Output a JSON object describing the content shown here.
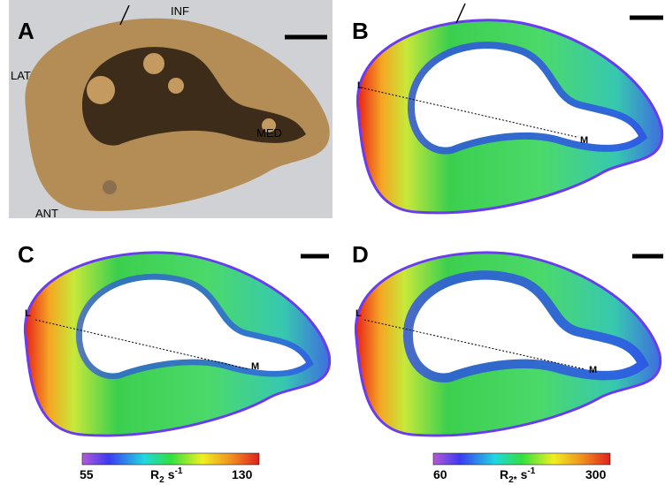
{
  "panels": [
    {
      "label": "A",
      "annotations": [
        "INF",
        "LAT",
        "MED",
        "ANT"
      ]
    },
    {
      "label": "B",
      "annotations": [
        "L",
        "M"
      ]
    },
    {
      "label": "C",
      "annotations": [
        "L",
        "M"
      ],
      "colorbar": {
        "min": 55,
        "max": 130,
        "symbol": "R",
        "sub": "2",
        "unit": "s",
        "exp": "-1"
      }
    },
    {
      "label": "D",
      "annotations": [
        "L",
        "M"
      ],
      "colorbar": {
        "min": 60,
        "max": 300,
        "symbol": "R",
        "sub": "2*",
        "unit": "s",
        "exp": "-1"
      }
    }
  ]
}
